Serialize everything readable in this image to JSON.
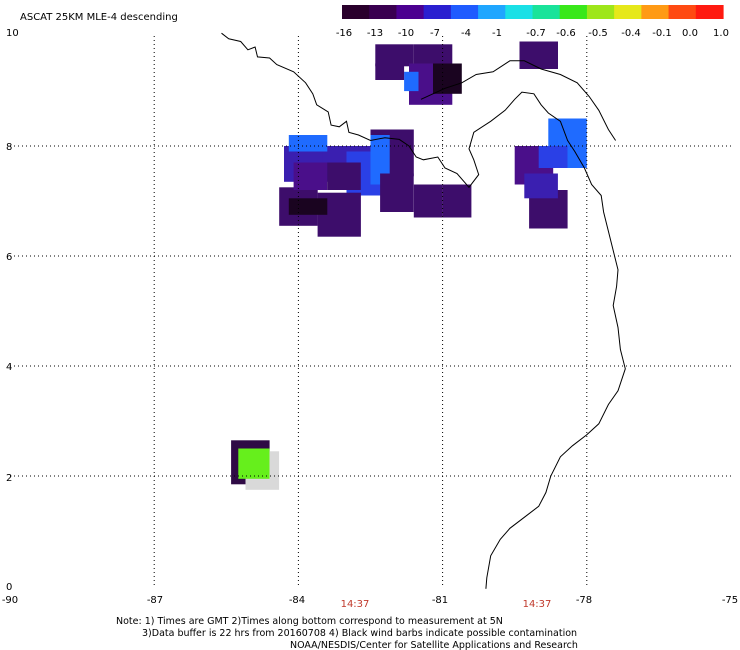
{
  "title": "ASCAT 25KM MLE-4 descending",
  "colorbar": {
    "tick_labels": [
      "-16",
      "-13",
      "-10",
      "-7",
      "-4",
      "-1",
      "-0.7",
      "-0.6",
      "-0.5",
      "-0.4",
      "-0.1",
      "0.0",
      "1.0"
    ],
    "colors": [
      "#2a002c",
      "#3a0050",
      "#4b0090",
      "#2a1fd0",
      "#1f5bff",
      "#1fa6ff",
      "#1ae0e6",
      "#19e39a",
      "#39e81a",
      "#9ee61a",
      "#e6e81a",
      "#ff9a14",
      "#ff4a12",
      "#ff1a10"
    ]
  },
  "axes": {
    "x_ticks": [
      "-90",
      "-87",
      "-84",
      "-81",
      "-78",
      "-75"
    ],
    "y_ticks": [
      "10",
      "8",
      "6",
      "4",
      "2",
      "0"
    ],
    "time_labels": [
      "14:37",
      "14:37"
    ],
    "xlim": [
      -90,
      -75
    ],
    "ylim": [
      0,
      10
    ]
  },
  "notes": {
    "line1": "Note: 1) Times are GMT 2)Times along bottom correspond to measurement at 5N",
    "line2": "3)Data buffer is 22 hrs from 20160708 4) Black wind barbs indicate possible contamination",
    "line3": "NOAA/NESDIS/Center for Satellite Applications and Research"
  },
  "cells": {
    "colors": {
      "d": "#2f0a45",
      "p": "#3d0d6b",
      "v": "#4a0f8a",
      "i": "#3a1fb0",
      "b": "#2a40e6",
      "l": "#1f6bff",
      "k": "#1a0420",
      "g": "#66ef1c",
      "s": "#d9d9d9"
    },
    "list": [
      {
        "lon0": -85.4,
        "lon1": -84.6,
        "lat0": 1.85,
        "lat1": 2.65,
        "c": "d"
      },
      {
        "lon0": -85.1,
        "lon1": -84.4,
        "lat0": 1.75,
        "lat1": 2.45,
        "c": "s"
      },
      {
        "lon0": -85.25,
        "lon1": -84.6,
        "lat0": 1.95,
        "lat1": 2.5,
        "c": "g"
      },
      {
        "lon0": -84.3,
        "lon1": -83.5,
        "lat0": 7.35,
        "lat1": 8.0,
        "c": "i"
      },
      {
        "lon0": -83.5,
        "lon1": -82.5,
        "lat0": 7.35,
        "lat1": 8.0,
        "c": "i"
      },
      {
        "lon0": -82.5,
        "lon1": -81.6,
        "lat0": 7.45,
        "lat1": 8.3,
        "c": "p"
      },
      {
        "lon0": -84.2,
        "lon1": -83.4,
        "lat0": 7.9,
        "lat1": 8.2,
        "c": "l"
      },
      {
        "lon0": -83.0,
        "lon1": -82.2,
        "lat0": 7.1,
        "lat1": 7.9,
        "c": "b"
      },
      {
        "lon0": -82.5,
        "lon1": -82.1,
        "lat0": 7.3,
        "lat1": 8.2,
        "c": "l"
      },
      {
        "lon0": -84.4,
        "lon1": -83.6,
        "lat0": 6.55,
        "lat1": 7.25,
        "c": "p"
      },
      {
        "lon0": -83.6,
        "lon1": -82.7,
        "lat0": 6.35,
        "lat1": 7.15,
        "c": "p"
      },
      {
        "lon0": -84.2,
        "lon1": -83.4,
        "lat0": 6.75,
        "lat1": 7.05,
        "c": "k"
      },
      {
        "lon0": -84.1,
        "lon1": -83.4,
        "lat0": 7.2,
        "lat1": 7.7,
        "c": "v"
      },
      {
        "lon0": -83.4,
        "lon1": -82.7,
        "lat0": 7.2,
        "lat1": 7.7,
        "c": "p"
      },
      {
        "lon0": -82.3,
        "lon1": -81.6,
        "lat0": 6.8,
        "lat1": 7.5,
        "c": "p"
      },
      {
        "lon0": -81.6,
        "lon1": -81.0,
        "lat0": 6.7,
        "lat1": 7.3,
        "c": "p"
      },
      {
        "lon0": -81.0,
        "lon1": -80.4,
        "lat0": 6.7,
        "lat1": 7.3,
        "c": "p"
      },
      {
        "lon0": -79.5,
        "lon1": -78.7,
        "lat0": 7.3,
        "lat1": 8.0,
        "c": "v"
      },
      {
        "lon0": -78.8,
        "lon1": -78.0,
        "lat0": 7.6,
        "lat1": 8.5,
        "c": "l"
      },
      {
        "lon0": -79.0,
        "lon1": -78.4,
        "lat0": 7.6,
        "lat1": 8.0,
        "c": "b"
      },
      {
        "lon0": -79.2,
        "lon1": -78.4,
        "lat0": 6.5,
        "lat1": 7.2,
        "c": "p"
      },
      {
        "lon0": -79.3,
        "lon1": -78.6,
        "lat0": 7.05,
        "lat1": 7.5,
        "c": "i"
      },
      {
        "lon0": -82.4,
        "lon1": -81.6,
        "lat0": 9.45,
        "lat1": 9.85,
        "c": "p"
      },
      {
        "lon0": -81.6,
        "lon1": -80.8,
        "lat0": 9.4,
        "lat1": 9.85,
        "c": "p"
      },
      {
        "lon0": -81.7,
        "lon1": -80.8,
        "lat0": 8.75,
        "lat1": 9.5,
        "c": "v"
      },
      {
        "lon0": -81.2,
        "lon1": -80.6,
        "lat0": 8.95,
        "lat1": 9.5,
        "c": "k"
      },
      {
        "lon0": -81.8,
        "lon1": -81.5,
        "lat0": 9.0,
        "lat1": 9.35,
        "c": "l"
      },
      {
        "lon0": -79.4,
        "lon1": -78.6,
        "lat0": 9.4,
        "lat1": 9.9,
        "c": "p"
      },
      {
        "lon0": -82.4,
        "lon1": -81.8,
        "lat0": 9.2,
        "lat1": 9.5,
        "c": "p"
      }
    ]
  },
  "coastline": {
    "main": [
      [
        -85.6,
        10.05
      ],
      [
        -85.45,
        9.95
      ],
      [
        -85.2,
        9.9
      ],
      [
        -85.05,
        9.75
      ],
      [
        -84.9,
        9.8
      ],
      [
        -84.85,
        9.62
      ],
      [
        -84.6,
        9.6
      ],
      [
        -84.45,
        9.48
      ],
      [
        -84.1,
        9.35
      ],
      [
        -83.85,
        9.15
      ],
      [
        -83.7,
        8.95
      ],
      [
        -83.62,
        8.75
      ],
      [
        -83.38,
        8.62
      ],
      [
        -83.32,
        8.38
      ],
      [
        -83.15,
        8.35
      ],
      [
        -83.0,
        8.45
      ],
      [
        -82.95,
        8.25
      ],
      [
        -82.75,
        8.2
      ],
      [
        -82.5,
        8.1
      ],
      [
        -82.2,
        8.15
      ],
      [
        -81.9,
        8.12
      ],
      [
        -81.7,
        8.0
      ],
      [
        -81.55,
        7.8
      ],
      [
        -81.4,
        7.75
      ],
      [
        -81.1,
        7.8
      ],
      [
        -80.95,
        7.6
      ],
      [
        -80.7,
        7.5
      ],
      [
        -80.45,
        7.25
      ],
      [
        -80.25,
        7.48
      ],
      [
        -80.35,
        7.75
      ],
      [
        -80.45,
        7.95
      ],
      [
        -80.35,
        8.25
      ],
      [
        -80.0,
        8.45
      ],
      [
        -79.7,
        8.65
      ],
      [
        -79.5,
        8.85
      ],
      [
        -79.35,
        8.98
      ],
      [
        -79.1,
        8.95
      ],
      [
        -78.95,
        8.75
      ],
      [
        -78.8,
        8.6
      ],
      [
        -78.55,
        8.45
      ],
      [
        -78.4,
        8.1
      ],
      [
        -78.25,
        7.9
      ],
      [
        -78.05,
        7.6
      ],
      [
        -77.9,
        7.3
      ],
      [
        -77.7,
        7.1
      ],
      [
        -77.65,
        6.8
      ],
      [
        -77.55,
        6.45
      ],
      [
        -77.45,
        6.1
      ],
      [
        -77.35,
        5.75
      ],
      [
        -77.38,
        5.45
      ],
      [
        -77.45,
        5.1
      ],
      [
        -77.35,
        4.7
      ],
      [
        -77.3,
        4.3
      ],
      [
        -77.2,
        3.95
      ],
      [
        -77.35,
        3.55
      ],
      [
        -77.55,
        3.3
      ],
      [
        -77.75,
        2.95
      ],
      [
        -78.0,
        2.75
      ],
      [
        -78.3,
        2.55
      ],
      [
        -78.55,
        2.35
      ],
      [
        -78.75,
        2.0
      ],
      [
        -78.85,
        1.7
      ],
      [
        -79.0,
        1.45
      ],
      [
        -79.3,
        1.25
      ],
      [
        -79.6,
        1.05
      ],
      [
        -79.8,
        0.85
      ],
      [
        -80.0,
        0.55
      ],
      [
        -80.08,
        0.15
      ],
      [
        -80.1,
        -0.05
      ]
    ],
    "caribbean": [
      [
        -81.45,
        8.85
      ],
      [
        -81.2,
        8.95
      ],
      [
        -80.95,
        9.05
      ],
      [
        -80.6,
        9.15
      ],
      [
        -80.3,
        9.3
      ],
      [
        -79.95,
        9.35
      ],
      [
        -79.6,
        9.55
      ],
      [
        -79.3,
        9.55
      ],
      [
        -78.95,
        9.4
      ],
      [
        -78.55,
        9.3
      ],
      [
        -78.2,
        9.15
      ],
      [
        -77.95,
        8.9
      ],
      [
        -77.75,
        8.65
      ],
      [
        -77.55,
        8.3
      ],
      [
        -77.4,
        8.1
      ]
    ]
  }
}
